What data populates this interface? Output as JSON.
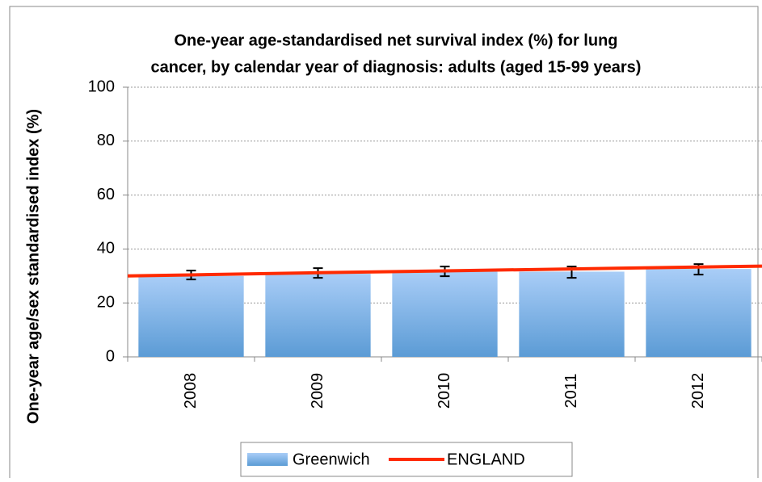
{
  "chart_data": {
    "type": "bar",
    "title": [
      "One-year age-standardised net survival index (%) for lung",
      "cancer, by calendar year of diagnosis: adults (aged 15-99 years)"
    ],
    "y_label": "One-year age/sex standardised index (%)",
    "categories": [
      "2008",
      "2009",
      "2010",
      "2011",
      "2012"
    ],
    "series": [
      {
        "name": "Greenwich",
        "color": "#5b9bd5",
        "values": [
          30.0,
          30.8,
          31.6,
          31.6,
          32.6
        ],
        "lower": [
          28.7,
          29.3,
          29.9,
          29.3,
          30.5
        ],
        "upper": [
          32.0,
          32.9,
          33.5,
          33.5,
          34.4
        ]
      },
      {
        "name": "ENGLAND",
        "type": "line",
        "color": "#ff2a00",
        "values": [
          30.4,
          31.2,
          31.9,
          32.6,
          33.3
        ]
      }
    ],
    "ylim": [
      0,
      100
    ],
    "yticks": [
      0,
      20,
      40,
      60,
      80,
      100
    ],
    "grid": true,
    "legend": "bottom"
  }
}
